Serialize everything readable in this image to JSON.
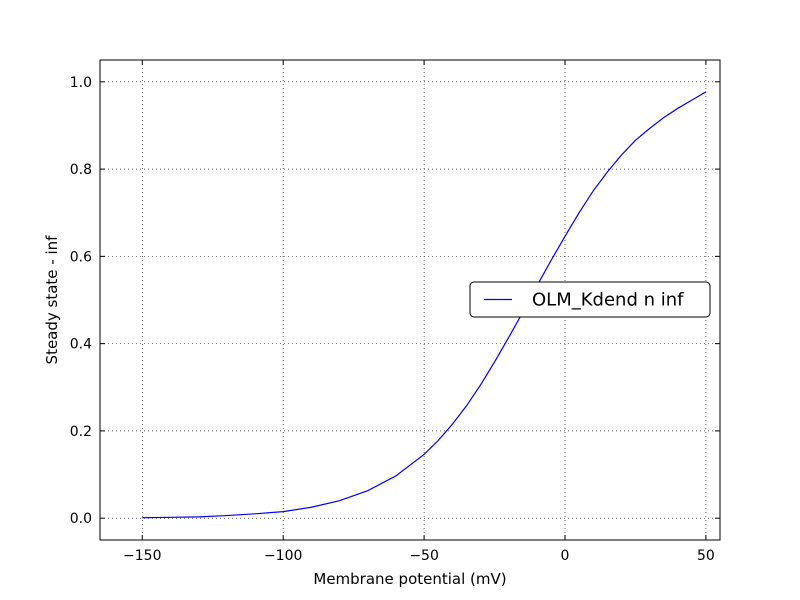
{
  "chart_data": {
    "type": "line",
    "title": "",
    "xlabel": "Membrane potential (mV)",
    "ylabel": "Steady state - inf",
    "xlim": [
      -165,
      55
    ],
    "ylim": [
      -0.05,
      1.05
    ],
    "grid": true,
    "grid_style": "dotted",
    "legend_position": "center-right",
    "xticks": [
      -150,
      -100,
      -50,
      0,
      50
    ],
    "xtick_labels": [
      "−150",
      "−100",
      "−50",
      "0",
      "50"
    ],
    "yticks": [
      0.0,
      0.2,
      0.4,
      0.6,
      0.8,
      1.0
    ],
    "ytick_labels": [
      "0.0",
      "0.2",
      "0.4",
      "0.6",
      "0.8",
      "1.0"
    ],
    "series": [
      {
        "name": "OLM_Kdend n inf",
        "color": "#0000ff",
        "x": [
          -150,
          -140,
          -130,
          -120,
          -110,
          -100,
          -90,
          -80,
          -70,
          -60,
          -50,
          -45,
          -40,
          -35,
          -30,
          -25,
          -20,
          -15,
          -10,
          -5,
          0,
          5,
          10,
          15,
          20,
          25,
          30,
          35,
          40,
          45,
          50
        ],
        "y": [
          0.001,
          0.002,
          0.003,
          0.006,
          0.01,
          0.015,
          0.025,
          0.04,
          0.063,
          0.097,
          0.146,
          0.178,
          0.215,
          0.257,
          0.305,
          0.358,
          0.414,
          0.472,
          0.532,
          0.59,
          0.646,
          0.7,
          0.75,
          0.793,
          0.832,
          0.866,
          0.893,
          0.918,
          0.939,
          0.958,
          0.977
        ]
      }
    ]
  }
}
